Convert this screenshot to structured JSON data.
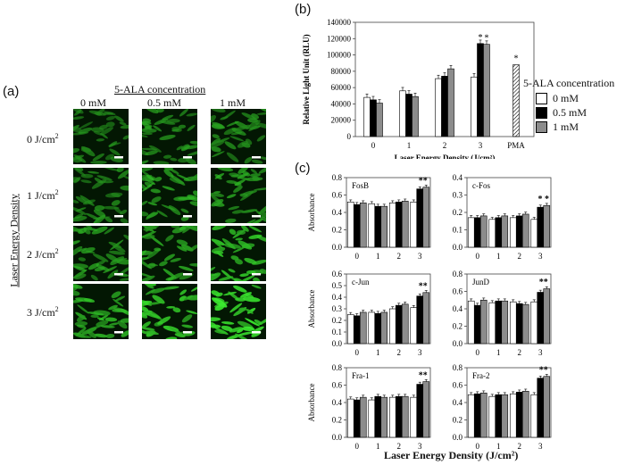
{
  "panel_labels": {
    "a": "(a)",
    "b": "(b)",
    "c": "(c)"
  },
  "micrograph": {
    "header": "5-ALA concentration",
    "columns": [
      "0 mM",
      "0.5 mM",
      "1 mM"
    ],
    "rows": [
      "0 J/cm",
      "1 J/cm",
      "2 J/cm",
      "3 J/cm"
    ],
    "row_superscript": "2",
    "row_axis_label": "Laser Energy Density",
    "brightness": [
      [
        0.45,
        0.55,
        0.55
      ],
      [
        0.5,
        0.65,
        0.65
      ],
      [
        0.6,
        0.7,
        0.85
      ],
      [
        0.75,
        0.9,
        1.0
      ]
    ]
  },
  "legend": {
    "title": "5-ALA concentration",
    "items": [
      "0 mM",
      "0.5 mM",
      "1 mM"
    ]
  },
  "colors": {
    "c0": "#ffffff",
    "c05": "#000000",
    "c1": "#8c8c8c",
    "green": "#35d135"
  },
  "chart_data": [
    {
      "id": "b",
      "type": "bar",
      "categories": [
        "0",
        "1",
        "2",
        "3",
        "PMA"
      ],
      "xlabel": "Laser Energy Density (J/cm²)",
      "ylabel": "Relative Light Unit (RLU)",
      "ylim": [
        0,
        140000
      ],
      "yticks": [
        "0",
        "20000",
        "40000",
        "60000",
        "80000",
        "100000",
        "120000",
        "140000"
      ],
      "series": [
        {
          "name": "0 mM",
          "values": [
            48000,
            56000,
            71000,
            73000,
            null
          ]
        },
        {
          "name": "0.5 mM",
          "values": [
            45000,
            52000,
            74000,
            114000,
            null
          ]
        },
        {
          "name": "1 mM",
          "values": [
            41000,
            49000,
            83000,
            113000,
            null
          ]
        }
      ],
      "extra_bar": {
        "category": "PMA",
        "value": 88000,
        "pattern": "hatched",
        "annotation": "*"
      },
      "annotations": {
        "3": [
          "",
          "*",
          "*"
        ]
      }
    },
    {
      "id": "fosb",
      "type": "bar",
      "title": "FosB",
      "categories": [
        "0",
        "1",
        "2",
        "3"
      ],
      "ylabel": "Absorbance",
      "ylim": [
        0,
        0.8
      ],
      "yticks": [
        "0.0",
        "0.2",
        "0.4",
        "0.6",
        "0.8"
      ],
      "series": [
        {
          "name": "0 mM",
          "values": [
            0.52,
            0.5,
            0.51,
            0.52
          ]
        },
        {
          "name": "0.5 mM",
          "values": [
            0.49,
            0.47,
            0.52,
            0.67
          ]
        },
        {
          "name": "1 mM",
          "values": [
            0.51,
            0.47,
            0.53,
            0.69
          ]
        }
      ],
      "annotation": "**"
    },
    {
      "id": "cfos",
      "type": "bar",
      "title": "c-Fos",
      "categories": [
        "0",
        "1",
        "2",
        "3"
      ],
      "ylabel": "",
      "ylim": [
        0,
        0.4
      ],
      "yticks": [
        "0.0",
        "0.1",
        "0.2",
        "0.3",
        "0.4"
      ],
      "series": [
        {
          "name": "0 mM",
          "values": [
            0.17,
            0.16,
            0.17,
            0.16
          ]
        },
        {
          "name": "0.5 mM",
          "values": [
            0.17,
            0.17,
            0.18,
            0.23
          ]
        },
        {
          "name": "1 mM",
          "values": [
            0.18,
            0.18,
            0.19,
            0.24
          ]
        }
      ],
      "annotation": "* *"
    },
    {
      "id": "cjun",
      "type": "bar",
      "title": "c-Jun",
      "categories": [
        "0",
        "1",
        "2",
        "3"
      ],
      "ylabel": "Absorbance",
      "ylim": [
        0,
        0.6
      ],
      "yticks": [
        "0.0",
        "0.1",
        "0.2",
        "0.3",
        "0.4",
        "0.5",
        "0.6"
      ],
      "series": [
        {
          "name": "0 mM",
          "values": [
            0.25,
            0.27,
            0.3,
            0.31
          ]
        },
        {
          "name": "0.5 mM",
          "values": [
            0.24,
            0.26,
            0.33,
            0.41
          ]
        },
        {
          "name": "1 mM",
          "values": [
            0.27,
            0.27,
            0.34,
            0.44
          ]
        }
      ],
      "annotation": "**"
    },
    {
      "id": "jund",
      "type": "bar",
      "title": "JunD",
      "categories": [
        "0",
        "1",
        "2",
        "3"
      ],
      "ylabel": "",
      "ylim": [
        0,
        0.8
      ],
      "yticks": [
        "0.0",
        "0.2",
        "0.4",
        "0.6",
        "0.8"
      ],
      "series": [
        {
          "name": "0 mM",
          "values": [
            0.49,
            0.47,
            0.48,
            0.48
          ]
        },
        {
          "name": "0.5 mM",
          "values": [
            0.44,
            0.49,
            0.46,
            0.59
          ]
        },
        {
          "name": "1 mM",
          "values": [
            0.5,
            0.49,
            0.45,
            0.63
          ]
        }
      ],
      "annotation": "**"
    },
    {
      "id": "fra1",
      "type": "bar",
      "title": "Fra-1",
      "categories": [
        "0",
        "1",
        "2",
        "3"
      ],
      "ylabel": "Absorbance",
      "ylim": [
        0,
        0.8
      ],
      "yticks": [
        "0.0",
        "0.2",
        "0.4",
        "0.6",
        "0.8"
      ],
      "series": [
        {
          "name": "0 mM",
          "values": [
            0.44,
            0.43,
            0.46,
            0.46
          ]
        },
        {
          "name": "0.5 mM",
          "values": [
            0.43,
            0.47,
            0.47,
            0.61
          ]
        },
        {
          "name": "1 mM",
          "values": [
            0.46,
            0.46,
            0.47,
            0.64
          ]
        }
      ],
      "annotation": "**"
    },
    {
      "id": "fra2",
      "type": "bar",
      "title": "Fra-2",
      "categories": [
        "0",
        "1",
        "2",
        "3"
      ],
      "ylabel": "",
      "ylim": [
        0,
        0.8
      ],
      "yticks": [
        "0.0",
        "0.2",
        "0.4",
        "0.6",
        "0.8"
      ],
      "series": [
        {
          "name": "0 mM",
          "values": [
            0.49,
            0.47,
            0.5,
            0.49
          ]
        },
        {
          "name": "0.5 mM",
          "values": [
            0.5,
            0.49,
            0.52,
            0.68
          ]
        },
        {
          "name": "1 mM",
          "values": [
            0.51,
            0.49,
            0.53,
            0.7
          ]
        }
      ],
      "annotation": "**"
    }
  ],
  "c_xlabel": "Laser Energy Density (J/cm²)"
}
